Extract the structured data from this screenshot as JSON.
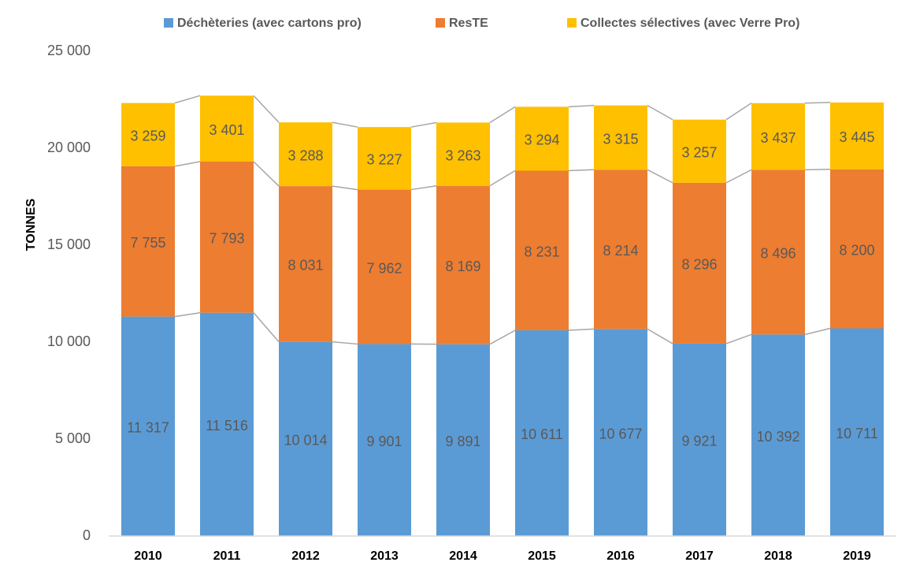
{
  "chart_data": {
    "type": "stacked_bar",
    "y_label": "TONNES",
    "categories": [
      "2010",
      "2011",
      "2012",
      "2013",
      "2014",
      "2015",
      "2016",
      "2017",
      "2018",
      "2019"
    ],
    "series": [
      {
        "name": "Déchèteries (avec cartons pro)",
        "color": "#5b9bd5",
        "values": [
          11317,
          11516,
          10014,
          9901,
          9891,
          10611,
          10677,
          9921,
          10392,
          10711
        ],
        "value_labels": [
          "11 317",
          "11 516",
          "10 014",
          "9 901",
          "9 891",
          "10 611",
          "10 677",
          "9 921",
          "10 392",
          "10 711"
        ]
      },
      {
        "name": "ResTE",
        "color": "#ed7d31",
        "values": [
          7755,
          7793,
          8031,
          7962,
          8169,
          8231,
          8214,
          8296,
          8496,
          8200
        ],
        "value_labels": [
          "7 755",
          "7 793",
          "8 031",
          "7 962",
          "8 169",
          "8 231",
          "8 214",
          "8 296",
          "8 496",
          "8 200"
        ]
      },
      {
        "name": "Collectes sélectives (avec Verre Pro)",
        "color": "#ffc000",
        "values": [
          3259,
          3401,
          3288,
          3227,
          3263,
          3294,
          3315,
          3257,
          3437,
          3445
        ],
        "value_labels": [
          "3 259",
          "3 401",
          "3 288",
          "3 227",
          "3 263",
          "3 294",
          "3 315",
          "3 257",
          "3 437",
          "3 445"
        ]
      }
    ],
    "ylim": [
      0,
      25000
    ],
    "yticks": [
      0,
      {
        "value": 5000,
        "label": "5 000"
      },
      {
        "value": 10000,
        "label": "10 000"
      },
      {
        "value": 15000,
        "label": "15 000"
      },
      {
        "value": 20000,
        "label": "20 000"
      },
      {
        "value": 25000,
        "label": "25 000"
      }
    ],
    "grid": false,
    "series_lines": true,
    "legend": "top"
  }
}
